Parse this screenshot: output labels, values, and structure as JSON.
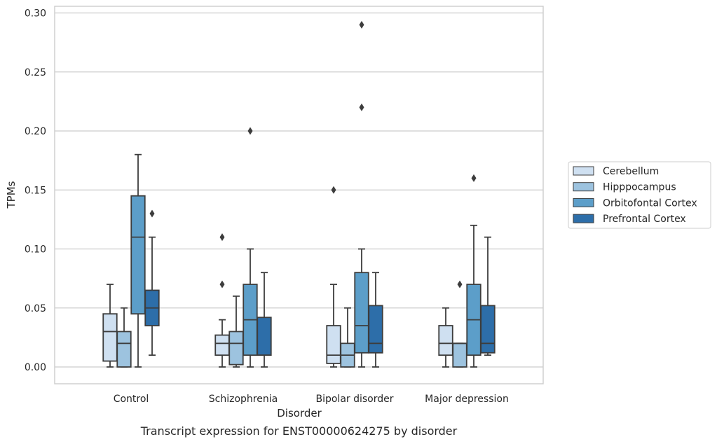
{
  "caption": "Transcript expression for ENST00000624275 by disorder",
  "chart_data": {
    "type": "box",
    "xlabel": "Disorder",
    "ylabel": "TPMs",
    "ylim": [
      -0.014,
      0.305
    ],
    "yticks": [
      "0.00",
      "0.05",
      "0.10",
      "0.15",
      "0.20",
      "0.25",
      "0.30"
    ],
    "grid": true,
    "legend_position": "right",
    "categories": [
      "Control",
      "Schizophrenia",
      "Bipolar disorder",
      "Major depression"
    ],
    "series": [
      {
        "name": "Cerebellum",
        "color": "#cfe0f1",
        "boxes": [
          {
            "whislo": 0.0,
            "q1": 0.005,
            "med": 0.03,
            "q3": 0.045,
            "whishi": 0.07,
            "fliers": []
          },
          {
            "whislo": 0.0,
            "q1": 0.01,
            "med": 0.02,
            "q3": 0.027,
            "whishi": 0.04,
            "fliers": [
              0.07,
              0.11
            ]
          },
          {
            "whislo": 0.0,
            "q1": 0.003,
            "med": 0.01,
            "q3": 0.035,
            "whishi": 0.07,
            "fliers": [
              0.15
            ]
          },
          {
            "whislo": 0.0,
            "q1": 0.01,
            "med": 0.02,
            "q3": 0.035,
            "whishi": 0.05,
            "fliers": []
          }
        ]
      },
      {
        "name": "Hipppocampus",
        "color": "#9dc3df",
        "boxes": [
          {
            "whislo": 0.0,
            "q1": 0.0,
            "med": 0.02,
            "q3": 0.03,
            "whishi": 0.05,
            "fliers": []
          },
          {
            "whislo": 0.0,
            "q1": 0.002,
            "med": 0.02,
            "q3": 0.03,
            "whishi": 0.06,
            "fliers": []
          },
          {
            "whislo": 0.0,
            "q1": 0.0,
            "med": 0.01,
            "q3": 0.02,
            "whishi": 0.05,
            "fliers": []
          },
          {
            "whislo": 0.0,
            "q1": 0.0,
            "med": 0.02,
            "q3": 0.02,
            "whishi": 0.02,
            "fliers": [
              0.07
            ]
          }
        ]
      },
      {
        "name": "Orbitofontal Cortex",
        "color": "#5c9ec9",
        "boxes": [
          {
            "whislo": 0.0,
            "q1": 0.045,
            "med": 0.11,
            "q3": 0.145,
            "whishi": 0.18,
            "fliers": []
          },
          {
            "whislo": 0.0,
            "q1": 0.01,
            "med": 0.04,
            "q3": 0.07,
            "whishi": 0.1,
            "fliers": [
              0.2
            ]
          },
          {
            "whislo": 0.0,
            "q1": 0.012,
            "med": 0.035,
            "q3": 0.08,
            "whishi": 0.1,
            "fliers": [
              0.22,
              0.29
            ]
          },
          {
            "whislo": 0.0,
            "q1": 0.01,
            "med": 0.04,
            "q3": 0.07,
            "whishi": 0.12,
            "fliers": [
              0.16
            ]
          }
        ]
      },
      {
        "name": "Prefrontal Cortex",
        "color": "#2d6ea9",
        "boxes": [
          {
            "whislo": 0.01,
            "q1": 0.035,
            "med": 0.05,
            "q3": 0.065,
            "whishi": 0.11,
            "fliers": [
              0.13
            ]
          },
          {
            "whislo": 0.0,
            "q1": 0.01,
            "med": 0.01,
            "q3": 0.042,
            "whishi": 0.08,
            "fliers": []
          },
          {
            "whislo": 0.0,
            "q1": 0.012,
            "med": 0.02,
            "q3": 0.052,
            "whishi": 0.08,
            "fliers": []
          },
          {
            "whislo": 0.01,
            "q1": 0.012,
            "med": 0.02,
            "q3": 0.052,
            "whishi": 0.11,
            "fliers": []
          }
        ]
      }
    ]
  }
}
